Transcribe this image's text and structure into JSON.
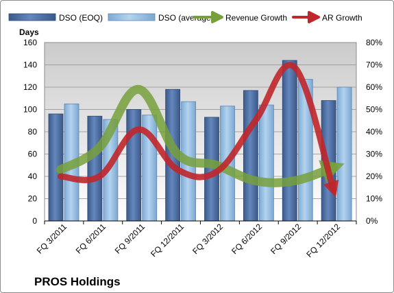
{
  "chart_data": {
    "type": "bar",
    "title": "PROS Holdings",
    "ylabel": "Days",
    "categories": [
      "FQ 3/2011",
      "FQ 6/2011",
      "FQ 9/2011",
      "FQ 12/2011",
      "FQ 3/2012",
      "FQ 6/2012",
      "FQ 9/2012",
      "FQ 12/2012"
    ],
    "ylim": [
      0,
      160
    ],
    "y2lim": [
      0,
      0.8
    ],
    "yticks": [
      "0",
      "20",
      "40",
      "60",
      "80",
      "100",
      "120",
      "140",
      "160"
    ],
    "y2ticks": [
      "0%",
      "10%",
      "20%",
      "30%",
      "40%",
      "50%",
      "60%",
      "70%",
      "80%"
    ],
    "series": [
      {
        "name": "DSO (EOQ)",
        "kind": "bar",
        "axis": "left",
        "color": "#4f6f9f",
        "values": [
          96,
          94,
          100,
          118,
          93,
          117,
          144,
          108
        ]
      },
      {
        "name": "DSO (average)",
        "kind": "bar",
        "axis": "left",
        "color": "#94bde0",
        "values": [
          105,
          91,
          95,
          107,
          103,
          104,
          127,
          120
        ]
      },
      {
        "name": "Revenue Growth",
        "kind": "line",
        "axis": "right",
        "color": "#77a03c",
        "values": [
          0.23,
          0.33,
          0.59,
          0.3,
          0.25,
          0.18,
          0.18,
          0.24
        ]
      },
      {
        "name": "AR Growth",
        "kind": "line",
        "axis": "right",
        "color": "#c0262b",
        "values": [
          0.2,
          0.2,
          0.41,
          0.23,
          0.22,
          0.45,
          0.69,
          0.14
        ]
      }
    ],
    "legend": "top",
    "grid": true
  }
}
